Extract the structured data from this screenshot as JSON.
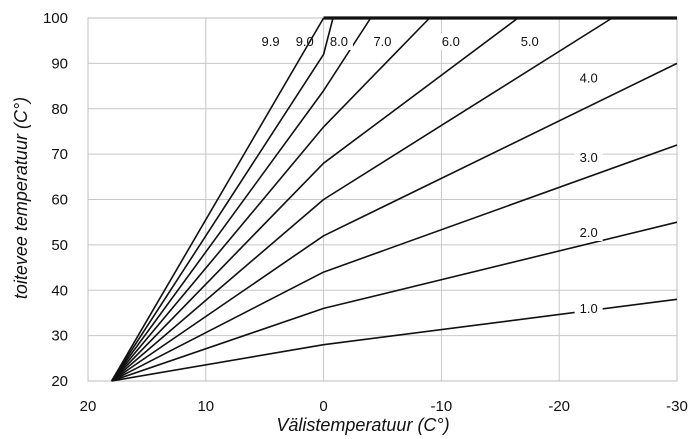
{
  "chart_data": {
    "type": "line",
    "title": "",
    "xlabel": "Välistemperatuur (C°)",
    "ylabel": "toitevee temperatuur (C°)",
    "xlim": [
      20,
      -30
    ],
    "ylim": [
      20,
      100
    ],
    "xticks": [
      20,
      10,
      0,
      -10,
      -20,
      -30
    ],
    "xtick_labels": [
      "20",
      "10",
      "0",
      "-10",
      "-20",
      "-30"
    ],
    "yticks": [
      20,
      30,
      40,
      50,
      60,
      70,
      80,
      90,
      100
    ],
    "ytick_labels": [
      "20",
      "30",
      "40",
      "50",
      "60",
      "70",
      "80",
      "90",
      "100"
    ],
    "grid": true,
    "legend": "none",
    "max_supply_temperature": 100,
    "series": [
      {
        "name": "1.0",
        "x": [
          18,
          0,
          -30
        ],
        "y": [
          20,
          28,
          38
        ]
      },
      {
        "name": "2.0",
        "x": [
          18,
          0,
          -30
        ],
        "y": [
          20,
          36,
          55
        ]
      },
      {
        "name": "3.0",
        "x": [
          18,
          0,
          -30
        ],
        "y": [
          20,
          44,
          72
        ]
      },
      {
        "name": "4.0",
        "x": [
          18,
          0,
          -30
        ],
        "y": [
          20,
          52,
          90
        ]
      },
      {
        "name": "5.0",
        "x": [
          18,
          0,
          -24.5
        ],
        "y": [
          20,
          60,
          100
        ]
      },
      {
        "name": "6.0",
        "x": [
          18,
          0,
          -16.5
        ],
        "y": [
          20,
          68,
          100
        ]
      },
      {
        "name": "7.0",
        "x": [
          18,
          0,
          -9
        ],
        "y": [
          20,
          76,
          100
        ]
      },
      {
        "name": "8.0",
        "x": [
          18,
          0,
          -4
        ],
        "y": [
          20,
          84,
          100
        ]
      },
      {
        "name": "9.0",
        "x": [
          18,
          0,
          -0.8
        ],
        "y": [
          20,
          92,
          100
        ]
      },
      {
        "name": "9.9",
        "x": [
          18,
          0
        ],
        "y": [
          20,
          100
        ]
      }
    ],
    "curve_label_colors": {
      "line": "#111111",
      "grid": "#c8c8c8",
      "frame": "#bdbdbd"
    }
  }
}
